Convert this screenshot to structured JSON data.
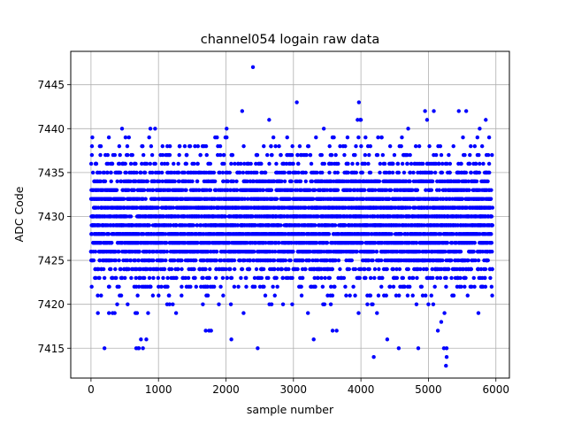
{
  "chart_data": {
    "type": "scatter",
    "title": "channel054 logain raw data",
    "xlabel": "sample number",
    "ylabel": "ADC Code",
    "xlim": [
      -300,
      6200
    ],
    "ylim": [
      7411.6,
      7448.8
    ],
    "xticks": [
      0,
      1000,
      2000,
      3000,
      4000,
      5000,
      6000
    ],
    "yticks": [
      7415,
      7420,
      7425,
      7430,
      7435,
      7440,
      7445
    ],
    "grid": true,
    "marker_color": "#0000ff",
    "axis_color": "#000000",
    "grid_color": "#b0b0b0",
    "n_samples": 5950,
    "band": {
      "low": 7419,
      "high": 7439,
      "center": 7429.5,
      "spread": 3.6
    },
    "series": [
      {
        "x": [
          2400,
          3050,
          3970,
          2240,
          4950,
          5080,
          5450,
          5560,
          460,
          880,
          950,
          2010,
          2640,
          3450,
          3950,
          3990,
          4000,
          4980,
          5850,
          5760,
          5900,
          4700,
          5230,
          5260,
          5270,
          5270,
          200,
          670,
          700,
          710,
          740,
          770,
          820,
          2470,
          2080,
          3300,
          3580,
          3640,
          4190,
          4390,
          4560,
          4850,
          5140,
          5190,
          1700,
          1750,
          1780
        ],
        "y": [
          7447,
          7443,
          7443,
          7442,
          7442,
          7442,
          7442,
          7442,
          7440,
          7440,
          7440,
          7440,
          7441,
          7440,
          7441,
          7441,
          7441,
          7441,
          7441,
          7440,
          7439,
          7440,
          7415,
          7413,
          7414,
          7415,
          7415,
          7415,
          7415,
          7415,
          7416,
          7415,
          7416,
          7415,
          7416,
          7416,
          7417,
          7417,
          7414,
          7416,
          7415,
          7415,
          7417,
          7418,
          7417,
          7417,
          7417
        ]
      }
    ]
  }
}
